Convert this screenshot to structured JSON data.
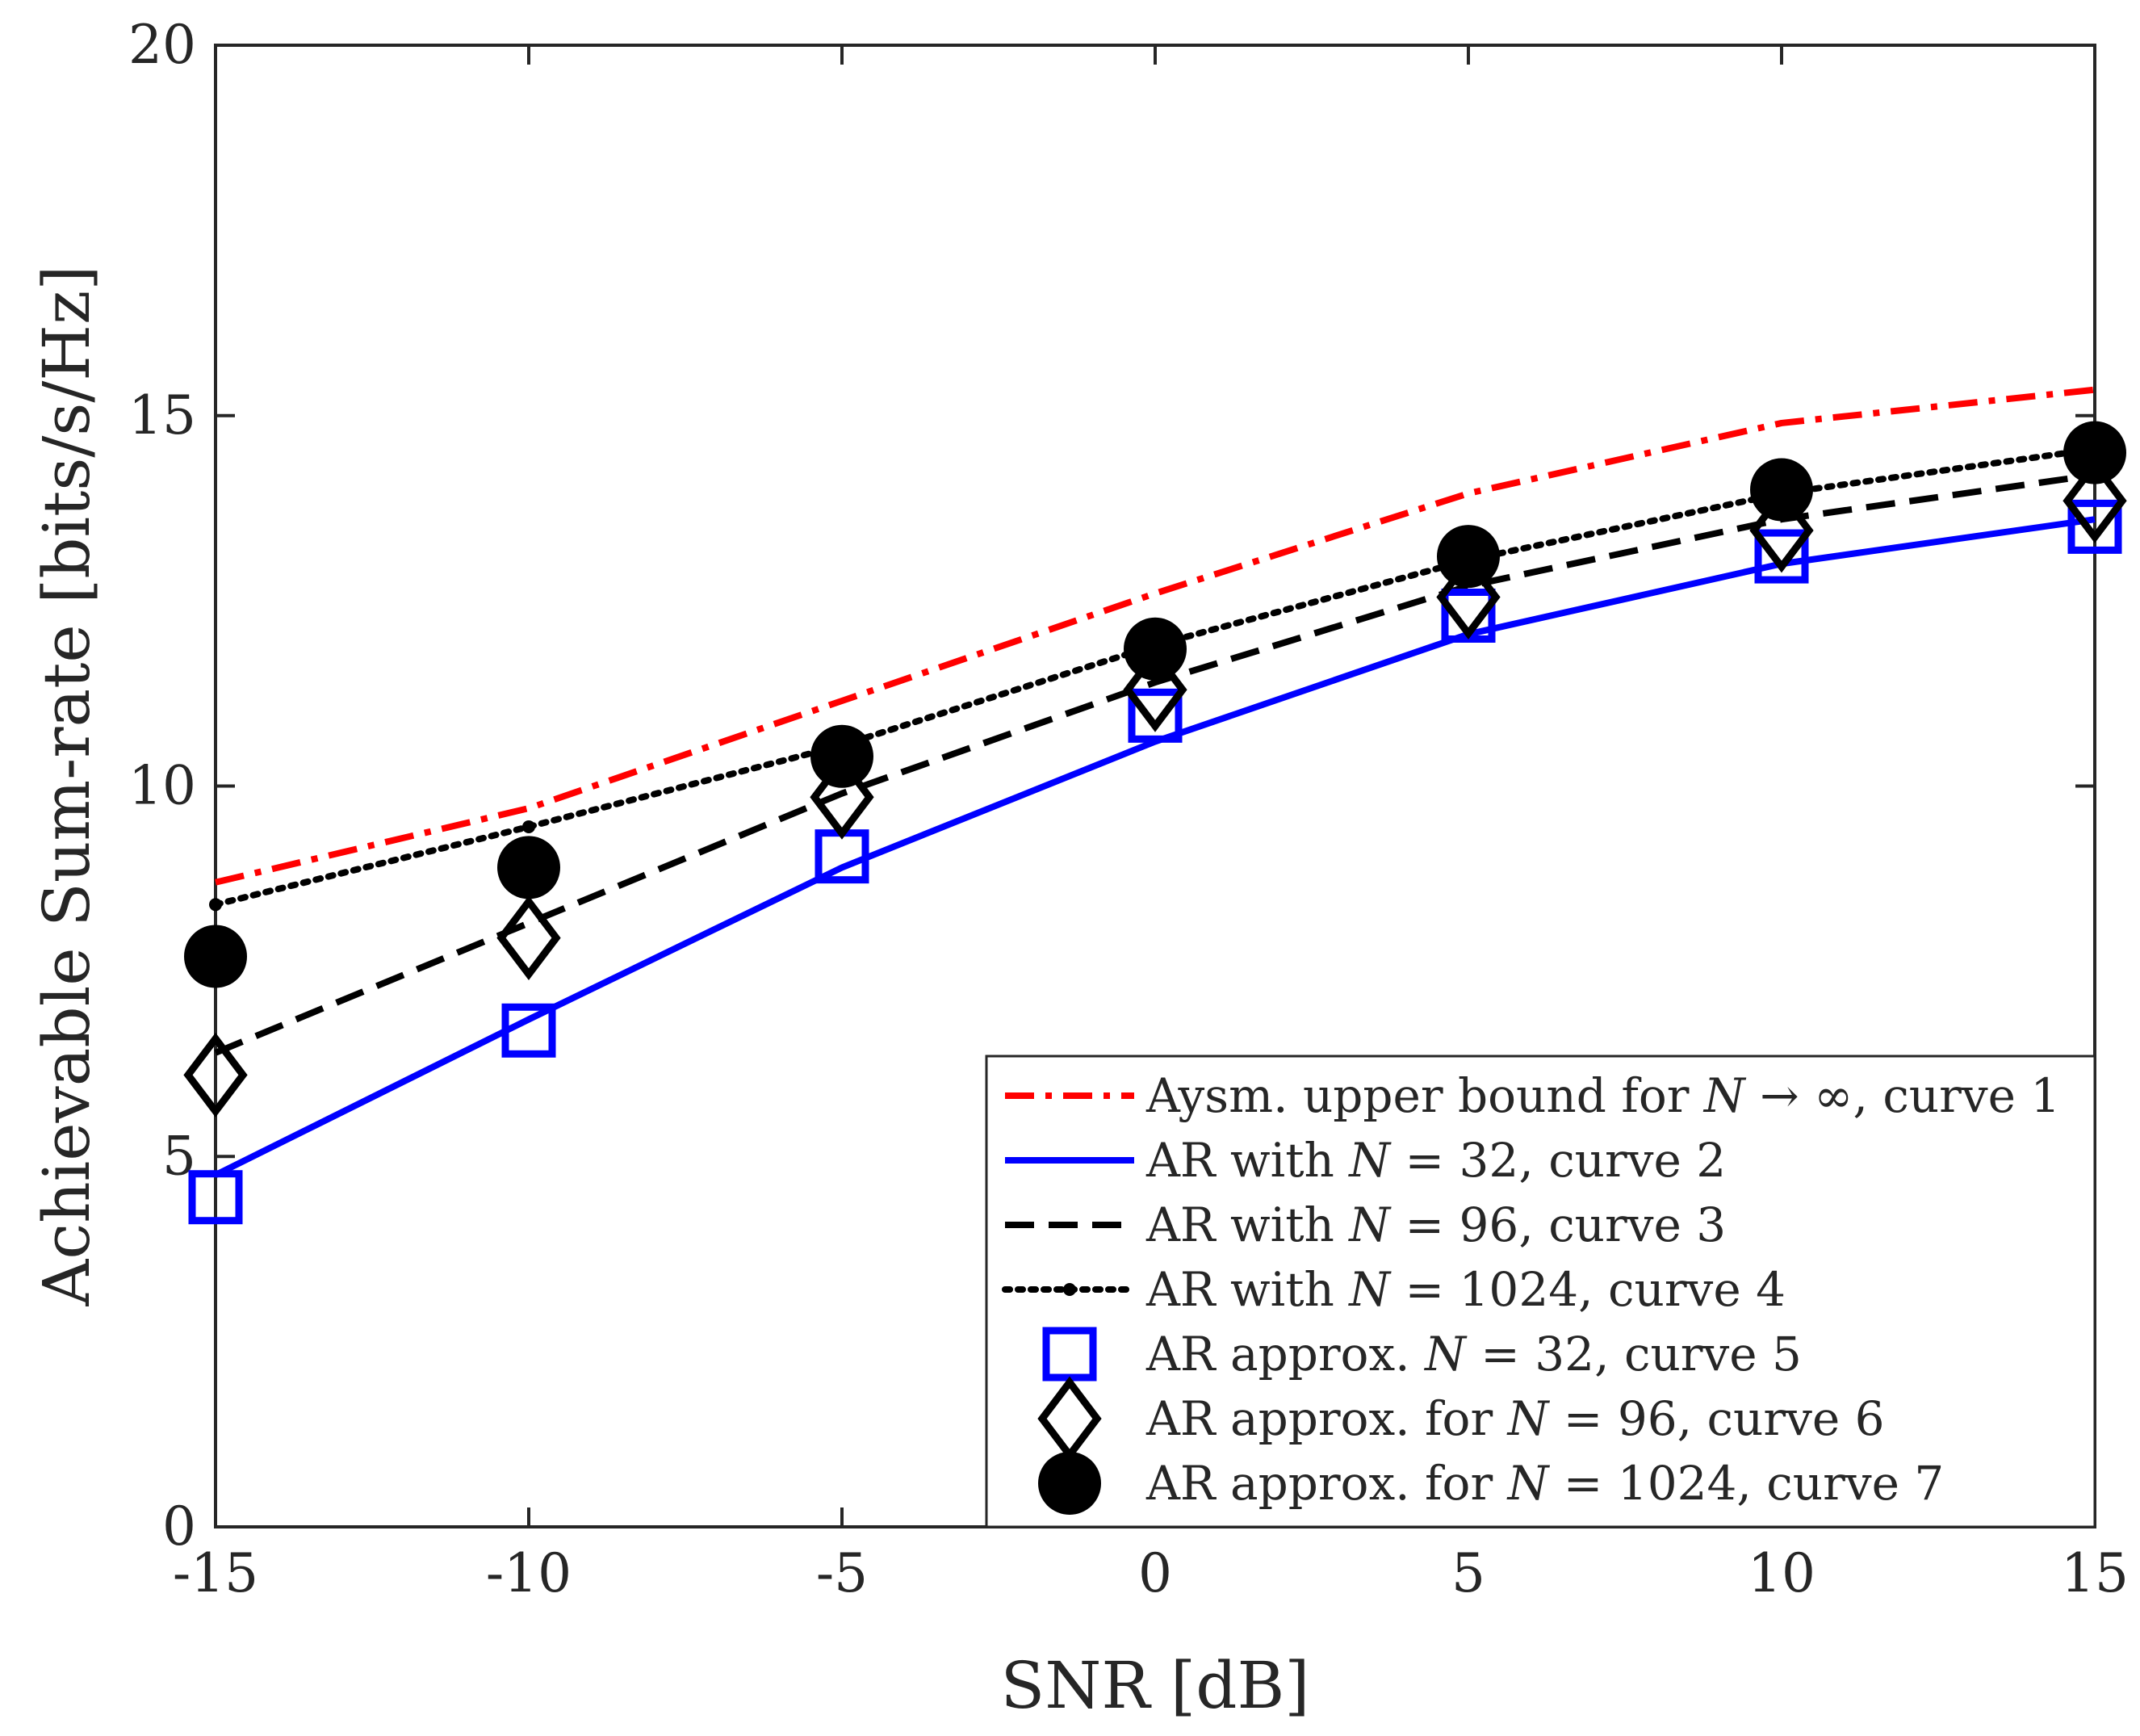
{
  "chart_data": {
    "type": "line",
    "xlabel": "SNR [dB]",
    "ylabel": "Achievable Sum-rate [bits/s/Hz]",
    "xlim": [
      -15,
      15
    ],
    "ylim": [
      0,
      20
    ],
    "x": [
      -15,
      -10,
      -5,
      0,
      5,
      10,
      15
    ],
    "xtick_labels": [
      "-15",
      "-10",
      "-5",
      "0",
      "5",
      "10",
      "15"
    ],
    "yticks": [
      0,
      5,
      10,
      15,
      20
    ],
    "ytick_labels": [
      "0",
      "5",
      "10",
      "15",
      "20"
    ],
    "grid": false,
    "legend_position": "bottom-right",
    "series": [
      {
        "id": "s1",
        "name": "Aysm. upper bound for N → ∞, curve 1",
        "style": "dashdot",
        "color": "#ff0000",
        "marker": "none",
        "values": [
          8.7,
          9.7,
          11.15,
          12.6,
          13.95,
          14.9,
          15.35
        ]
      },
      {
        "id": "s2",
        "name": "AR with N = 32, curve 2",
        "style": "solid",
        "color": "#0000ff",
        "marker": "none",
        "values": [
          4.75,
          6.85,
          8.9,
          10.6,
          12.05,
          13.0,
          13.6
        ]
      },
      {
        "id": "s3",
        "name": "AR with N = 96, curve 3",
        "style": "dashed",
        "color": "#000000",
        "marker": "none",
        "values": [
          6.4,
          8.15,
          9.9,
          11.4,
          12.7,
          13.6,
          14.2
        ]
      },
      {
        "id": "s4",
        "name": "AR with N = 1024, curve 4",
        "style": "dotted",
        "color": "#000000",
        "marker": "dot",
        "values": [
          8.4,
          9.45,
          10.55,
          11.9,
          13.05,
          13.95,
          14.55
        ]
      },
      {
        "id": "s5",
        "name": "AR approx. N = 32, curve 5",
        "style": "none",
        "color": "#0000ff",
        "marker": "square",
        "values": [
          4.45,
          6.7,
          9.05,
          10.95,
          12.3,
          13.1,
          13.5
        ]
      },
      {
        "id": "s6",
        "name": "AR approx. for N = 96, curve 6",
        "style": "none",
        "color": "#000000",
        "marker": "diamond",
        "values": [
          6.1,
          7.95,
          9.85,
          11.3,
          12.55,
          13.45,
          13.85
        ]
      },
      {
        "id": "s7",
        "name": "AR approx. for N = 1024, curve 7",
        "style": "none",
        "color": "#000000",
        "marker": "circle",
        "values": [
          7.7,
          8.9,
          10.4,
          11.85,
          13.1,
          14.0,
          14.5
        ]
      }
    ]
  },
  "legend": {
    "items": [
      {
        "prefix": "Aysm. upper bound for ",
        "var": "N",
        "suffix": " → ∞, curve 1"
      },
      {
        "prefix": "AR with ",
        "var": "N",
        "suffix": " = 32, curve 2"
      },
      {
        "prefix": "AR with ",
        "var": "N",
        "suffix": " = 96, curve 3"
      },
      {
        "prefix": "AR with ",
        "var": "N",
        "suffix": " = 1024, curve 4"
      },
      {
        "prefix": "AR approx. ",
        "var": "N",
        "suffix": " = 32, curve 5"
      },
      {
        "prefix": "AR approx. for ",
        "var": "N",
        "suffix": " = 96, curve 6"
      },
      {
        "prefix": "AR approx. for ",
        "var": "N",
        "suffix": " = 1024, curve 7"
      }
    ]
  }
}
